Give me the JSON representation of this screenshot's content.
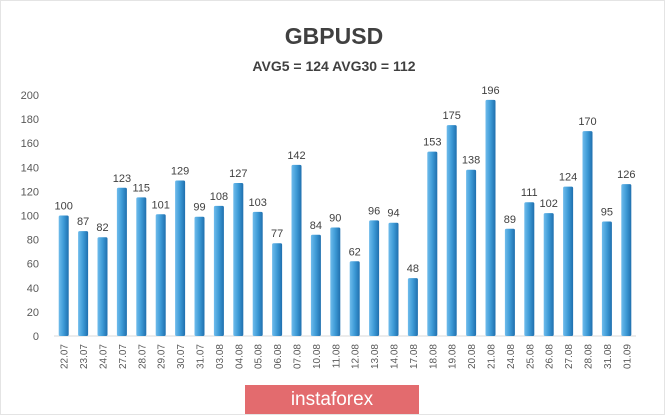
{
  "chart_data": {
    "type": "bar",
    "title": "GBPUSD",
    "subtitle": "AVG5 = 124 AVG30 = 112",
    "xlabel": "",
    "ylabel": "",
    "ylim": [
      0,
      200
    ],
    "yticks": [
      0,
      20,
      40,
      60,
      80,
      100,
      120,
      140,
      160,
      180,
      200
    ],
    "grid": false,
    "bar_color": "#3d9ad6",
    "categories": [
      "22.07",
      "23.07",
      "24.07",
      "27.07",
      "28.07",
      "29.07",
      "30.07",
      "31.07",
      "03.08",
      "04.08",
      "05.08",
      "06.08",
      "07.08",
      "10.08",
      "11.08",
      "12.08",
      "13.08",
      "14.08",
      "17.08",
      "18.08",
      "19.08",
      "20.08",
      "21.08",
      "24.08",
      "25.08",
      "26.08",
      "27.08",
      "28.08",
      "31.08",
      "01.09"
    ],
    "values": [
      100,
      87,
      82,
      123,
      115,
      101,
      129,
      99,
      108,
      127,
      103,
      77,
      142,
      84,
      90,
      62,
      96,
      94,
      48,
      153,
      175,
      138,
      196,
      89,
      111,
      102,
      124,
      170,
      95,
      126
    ]
  },
  "watermark": "instaforex"
}
